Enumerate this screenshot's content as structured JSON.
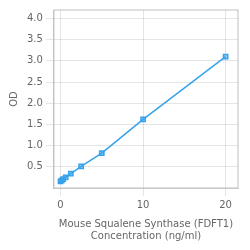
{
  "chart_data": {
    "type": "line",
    "x": [
      0,
      0.156,
      0.3125,
      0.625,
      1.25,
      2.5,
      5,
      10,
      20
    ],
    "values": [
      0.158,
      0.181,
      0.211,
      0.253,
      0.337,
      0.508,
      0.823,
      1.621,
      3.1
    ],
    "xlabel": "Mouse Squalene Synthase (FDFT1)\nConcentration (ng/ml)",
    "ylabel": "OD",
    "xlim": [
      -0.8,
      21.5
    ],
    "xticks": [
      0,
      10,
      20
    ],
    "ylim": [
      0,
      4.2
    ],
    "yticks": [
      0.5,
      1,
      1.5,
      2,
      2.5,
      3,
      3.5,
      4
    ],
    "marker": "square",
    "grid": true
  }
}
